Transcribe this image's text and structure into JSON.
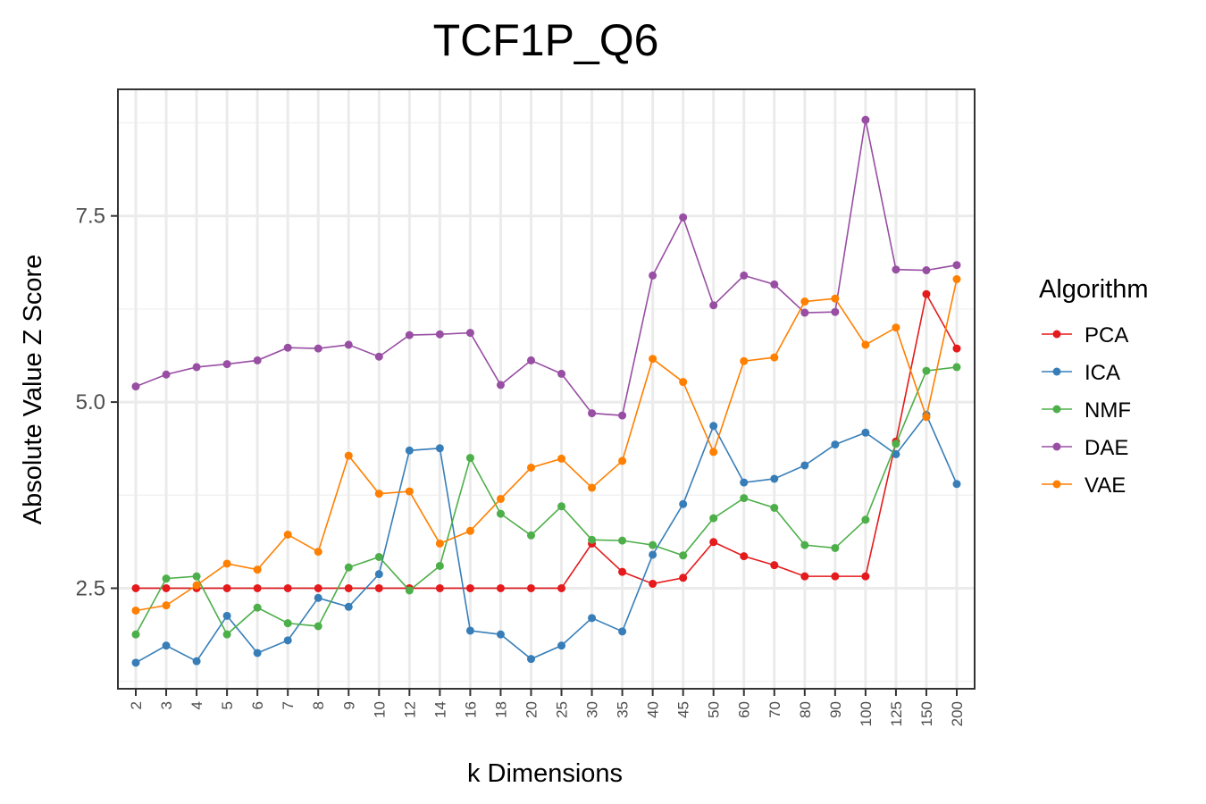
{
  "chart_data": {
    "type": "line",
    "title": "TCF1P_Q6",
    "xlabel": "k Dimensions",
    "ylabel": "Absolute Value Z Score",
    "categories": [
      "2",
      "3",
      "4",
      "5",
      "6",
      "7",
      "8",
      "9",
      "10",
      "12",
      "14",
      "16",
      "18",
      "20",
      "25",
      "30",
      "35",
      "40",
      "45",
      "50",
      "60",
      "70",
      "80",
      "90",
      "100",
      "125",
      "150",
      "200"
    ],
    "ylim": [
      1.15,
      9.2
    ],
    "yticks": [
      2.5,
      5.0,
      7.5
    ],
    "ytick_labels": [
      "2.5",
      "5.0",
      "7.5"
    ],
    "grid": true,
    "legend": {
      "title": "Algorithm",
      "position": "right"
    },
    "series": [
      {
        "name": "PCA",
        "color": "#e41a1c",
        "values": [
          2.5,
          2.5,
          2.5,
          2.5,
          2.5,
          2.5,
          2.5,
          2.5,
          2.5,
          2.5,
          2.5,
          2.5,
          2.5,
          2.5,
          2.5,
          3.1,
          2.72,
          2.56,
          2.64,
          3.12,
          2.93,
          2.81,
          2.66,
          2.66,
          2.66,
          4.47,
          6.45,
          5.72
        ]
      },
      {
        "name": "ICA",
        "color": "#377eb8",
        "values": [
          1.5,
          1.73,
          1.52,
          2.13,
          1.63,
          1.8,
          2.37,
          2.25,
          2.69,
          4.35,
          4.38,
          1.93,
          1.88,
          1.55,
          1.73,
          2.1,
          1.92,
          2.95,
          3.63,
          4.68,
          3.92,
          3.97,
          4.15,
          4.43,
          4.59,
          4.3,
          4.83,
          3.9
        ]
      },
      {
        "name": "NMF",
        "color": "#4daf4a",
        "values": [
          1.88,
          2.63,
          2.66,
          1.88,
          2.24,
          2.03,
          1.99,
          2.78,
          2.92,
          2.47,
          2.8,
          4.25,
          3.5,
          3.21,
          3.6,
          3.15,
          3.14,
          3.08,
          2.94,
          3.44,
          3.71,
          3.58,
          3.08,
          3.04,
          3.42,
          4.44,
          5.42,
          5.47
        ]
      },
      {
        "name": "DAE",
        "color": "#984ea3",
        "values": [
          5.21,
          5.37,
          5.47,
          5.51,
          5.56,
          5.73,
          5.72,
          5.77,
          5.61,
          5.9,
          5.91,
          5.93,
          5.23,
          5.56,
          5.38,
          4.85,
          4.82,
          6.7,
          7.48,
          6.3,
          6.7,
          6.58,
          6.2,
          6.21,
          8.79,
          6.78,
          6.77,
          6.84
        ]
      },
      {
        "name": "VAE",
        "color": "#ff7f00",
        "values": [
          2.2,
          2.27,
          2.54,
          2.83,
          2.75,
          3.22,
          2.99,
          4.28,
          3.77,
          3.8,
          3.1,
          3.27,
          3.7,
          4.12,
          4.24,
          3.85,
          4.21,
          5.58,
          5.27,
          4.33,
          5.55,
          5.6,
          6.35,
          6.39,
          5.77,
          6.0,
          4.8,
          6.65
        ]
      }
    ]
  }
}
